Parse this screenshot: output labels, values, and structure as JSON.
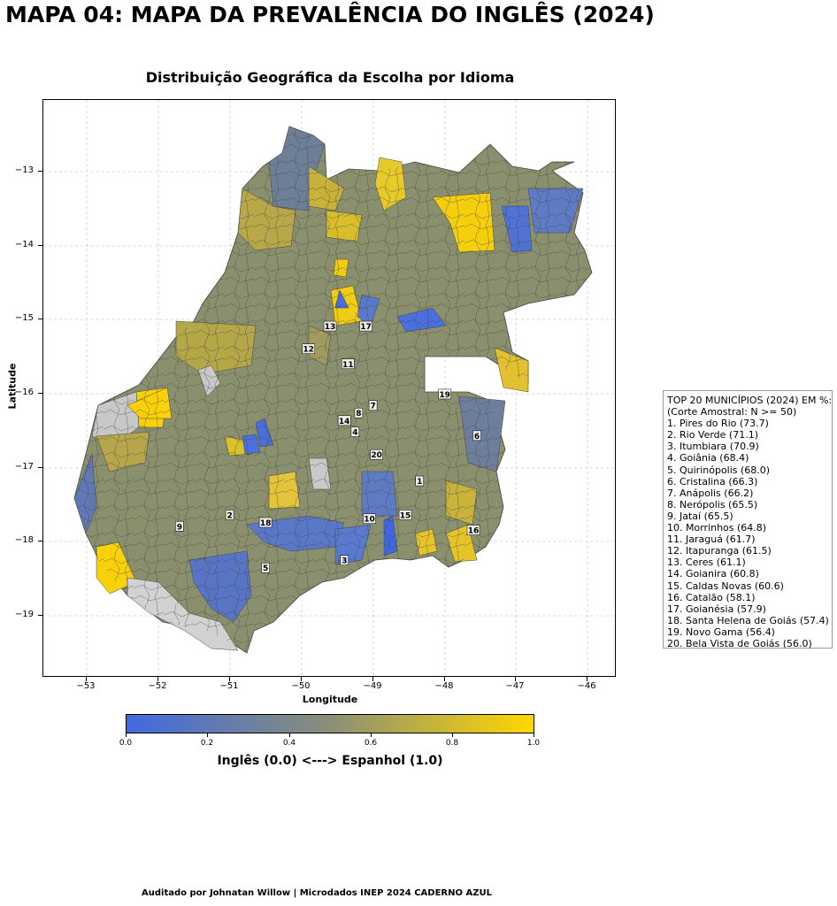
{
  "title": "MAPA 04: MAPA DA PREVALÊNCIA DO INGLÊS (2024)",
  "subtitle": "Distribuição Geográfica da Escolha por Idioma",
  "axes": {
    "xlabel": "Longitude",
    "ylabel": "Latitude",
    "xticks": [
      "−53",
      "−52",
      "−51",
      "−50",
      "−49",
      "−48",
      "−47",
      "−46"
    ],
    "yticks": [
      "−13",
      "−14",
      "−15",
      "−16",
      "−17",
      "−18",
      "−19"
    ],
    "xlim": [
      -53.6,
      -45.6
    ],
    "ylim": [
      -19.85,
      -12.2
    ],
    "grid": true
  },
  "colorbar": {
    "title": "Inglês (0.0) <---> Espanhol (1.0)",
    "ticks": [
      "0.0",
      "0.2",
      "0.4",
      "0.6",
      "0.8",
      "1.0"
    ],
    "low_color": "#4169e1",
    "mid_color": "#8a8f78",
    "high_color": "#ffd700"
  },
  "legend": {
    "header": "TOP 20 MUNICÍPIOS (2024) EM %:",
    "subheader": "(Corte Amostral: N >= 50)",
    "items": [
      "1. Pires do Rio (73.7)",
      "2. Rio Verde (71.1)",
      "3. Itumbiara (70.9)",
      "4. Goiânia (68.4)",
      "5. Quirinópolis (68.0)",
      "6. Cristalina (66.3)",
      "7. Anápolis (66.2)",
      "8. Nerópolis (65.5)",
      "9. Jataí (65.5)",
      "10. Morrinhos (64.8)",
      "11. Jaraguá (61.7)",
      "12. Itapuranga (61.5)",
      "13. Ceres (61.1)",
      "14. Goianira (60.8)",
      "15. Caldas Novas (60.6)",
      "16. Catalão (58.1)",
      "17. Goianésia (57.9)",
      "18. Santa Helena de Goiás (57.4)",
      "19. Novo Gama (56.4)",
      "20. Bela Vista de Goiás (56.0)"
    ]
  },
  "map_labels": [
    {
      "num": "1",
      "lon": -48.35,
      "lat": -17.25
    },
    {
      "num": "2",
      "lon": -51.0,
      "lat": -17.7
    },
    {
      "num": "3",
      "lon": -49.4,
      "lat": -18.3
    },
    {
      "num": "4",
      "lon": -49.25,
      "lat": -16.6
    },
    {
      "num": "5",
      "lon": -50.5,
      "lat": -18.4
    },
    {
      "num": "6",
      "lon": -47.55,
      "lat": -16.65
    },
    {
      "num": "7",
      "lon": -49.0,
      "lat": -16.25
    },
    {
      "num": "8",
      "lon": -49.2,
      "lat": -16.35
    },
    {
      "num": "9",
      "lon": -51.7,
      "lat": -17.85
    },
    {
      "num": "10",
      "lon": -49.05,
      "lat": -17.75
    },
    {
      "num": "11",
      "lon": -49.35,
      "lat": -15.7
    },
    {
      "num": "12",
      "lon": -49.9,
      "lat": -15.5
    },
    {
      "num": "13",
      "lon": -49.6,
      "lat": -15.2
    },
    {
      "num": "14",
      "lon": -49.4,
      "lat": -16.45
    },
    {
      "num": "15",
      "lon": -48.55,
      "lat": -17.7
    },
    {
      "num": "16",
      "lon": -47.6,
      "lat": -17.9
    },
    {
      "num": "17",
      "lon": -49.1,
      "lat": -15.2
    },
    {
      "num": "18",
      "lon": -50.5,
      "lat": -17.8
    },
    {
      "num": "19",
      "lon": -48.0,
      "lat": -16.1
    },
    {
      "num": "20",
      "lon": -48.95,
      "lat": -16.9
    }
  ],
  "footer": "Auditado por Johnatan Willow | Microdados INEP 2024 CADERNO AZUL"
}
